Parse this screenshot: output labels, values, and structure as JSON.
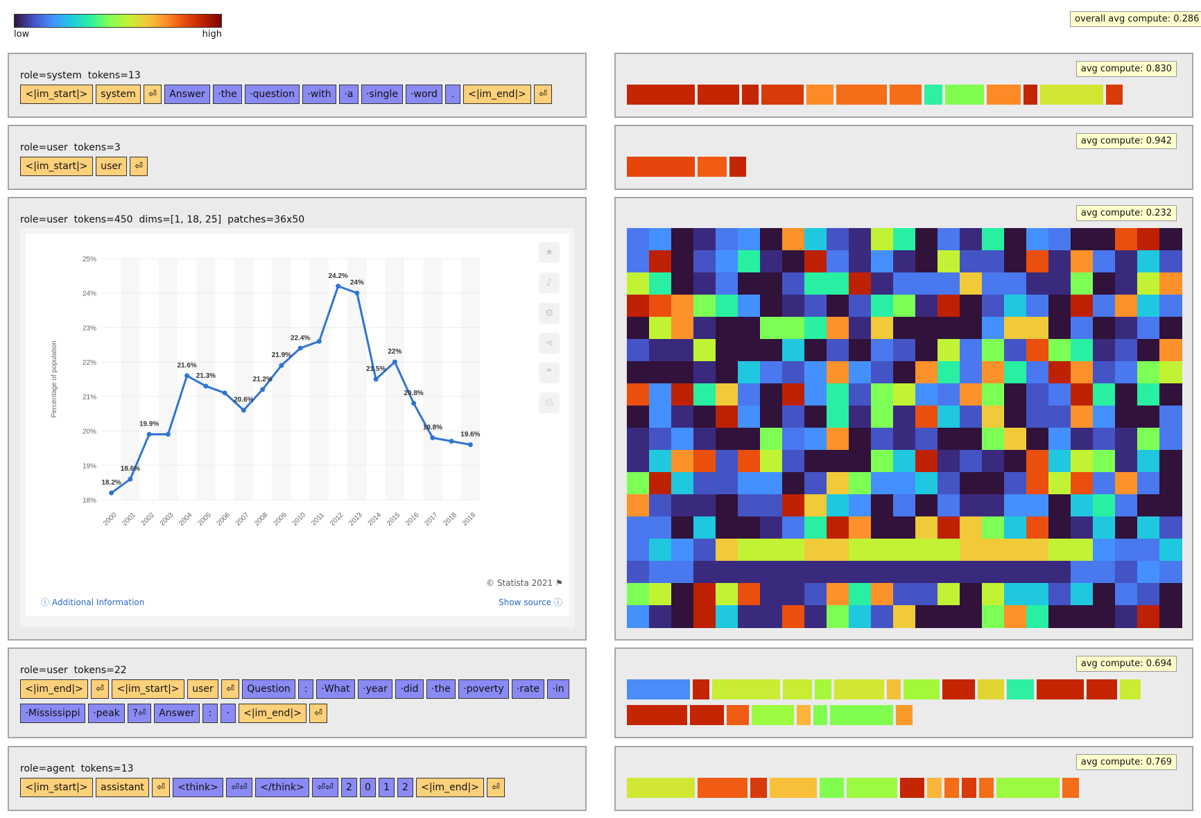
{
  "legend": {
    "low": "low",
    "high": "high"
  },
  "overall_avg": "overall avg compute: 0.286",
  "colors": {
    "special_token": "#fdd07a",
    "text_token": "#8a8af5",
    "panel_bg": "#ebebeb",
    "badge_bg": "#ffffcc"
  },
  "rows": [
    {
      "header": "role=system  tokens=13",
      "tokens": [
        {
          "t": "<|im_start|>",
          "k": "sp"
        },
        {
          "t": "system",
          "k": "sp"
        },
        {
          "t": "⏎",
          "k": "sp"
        },
        {
          "t": "Answer",
          "k": "tx"
        },
        {
          "t": "·the",
          "k": "tx"
        },
        {
          "t": "·question",
          "k": "tx"
        },
        {
          "t": "·with",
          "k": "tx"
        },
        {
          "t": "·a",
          "k": "tx"
        },
        {
          "t": "·single",
          "k": "tx"
        },
        {
          "t": "·word",
          "k": "tx"
        },
        {
          "t": ".",
          "k": "tx"
        },
        {
          "t": "<|im_end|>",
          "k": "sp"
        },
        {
          "t": "⏎",
          "k": "sp"
        }
      ],
      "avg": "avg compute: 0.830",
      "compute": [
        "#c42503",
        "#c42503",
        "#c42503",
        "#d83a0a",
        "#fc8a26",
        "#f46d18",
        "#f46d18",
        "#2fefa0",
        "#81fd50",
        "#fc8a26",
        "#c42503",
        "#d2e634",
        "#d83a0a"
      ]
    },
    {
      "header": "role=user  tokens=3",
      "tokens": [
        {
          "t": "<|im_start|>",
          "k": "sp"
        },
        {
          "t": "user",
          "k": "sp"
        },
        {
          "t": "⏎",
          "k": "sp"
        }
      ],
      "avg": "avg compute: 0.942",
      "compute": [
        "#e4460c",
        "#f05c14",
        "#c42503"
      ]
    },
    {
      "header": "role=user  tokens=450  dims=[1, 18, 25]  patches=36x50",
      "avg": "avg compute: 0.232"
    },
    {
      "header": "role=user  tokens=22",
      "tokens": [
        {
          "t": "<|im_end|>",
          "k": "sp"
        },
        {
          "t": "⏎",
          "k": "sp"
        },
        {
          "t": "<|im_start|>",
          "k": "sp"
        },
        {
          "t": "user",
          "k": "sp"
        },
        {
          "t": "⏎",
          "k": "sp"
        },
        {
          "t": "Question",
          "k": "tx"
        },
        {
          "t": ":",
          "k": "tx"
        },
        {
          "t": "·What",
          "k": "tx"
        },
        {
          "t": "·year",
          "k": "tx"
        },
        {
          "t": "·did",
          "k": "tx"
        },
        {
          "t": "·the",
          "k": "tx"
        },
        {
          "t": "·poverty",
          "k": "tx"
        },
        {
          "t": "·rate",
          "k": "tx"
        },
        {
          "t": "·in",
          "k": "tx"
        },
        {
          "t": "·Mississippi",
          "k": "tx"
        },
        {
          "t": "·peak",
          "k": "tx"
        },
        {
          "t": "?⏎",
          "k": "tx"
        },
        {
          "t": "Answer",
          "k": "tx"
        },
        {
          "t": ":",
          "k": "tx"
        },
        {
          "t": "·",
          "k": "tx"
        },
        {
          "t": "<|im_end|>",
          "k": "sp"
        },
        {
          "t": "⏎",
          "k": "sp"
        }
      ],
      "avg": "avg compute: 0.694",
      "compute": [
        "#4a8cf8",
        "#c42503",
        "#c9ec34",
        "#c9ec34",
        "#a3f83c",
        "#d2e634",
        "#f2c13a",
        "#a3f83c",
        "#c42503",
        "#e0d532",
        "#2fefa0",
        "#c42503",
        "#c42503",
        "#c9ec34",
        "#c42503",
        "#c42503",
        "#f05c14",
        "#9cfa40",
        "#fab53a",
        "#81fd50",
        "#81fd50",
        "#fc9a2c"
      ]
    },
    {
      "header": "role=agent  tokens=13",
      "tokens": [
        {
          "t": "<|im_start|>",
          "k": "sp"
        },
        {
          "t": "assistant",
          "k": "sp"
        },
        {
          "t": "⏎",
          "k": "sp"
        },
        {
          "t": "<think>",
          "k": "tx"
        },
        {
          "t": "⏎⏎",
          "k": "tx"
        },
        {
          "t": "</think>",
          "k": "tx"
        },
        {
          "t": "⏎⏎",
          "k": "tx"
        },
        {
          "t": "2",
          "k": "tx"
        },
        {
          "t": "0",
          "k": "tx"
        },
        {
          "t": "1",
          "k": "tx"
        },
        {
          "t": "2",
          "k": "tx"
        },
        {
          "t": "<|im_end|>",
          "k": "sp"
        },
        {
          "t": "⏎",
          "k": "sp"
        }
      ],
      "avg": "avg compute: 0.769",
      "compute": [
        "#d2e634",
        "#f05c14",
        "#d83a0a",
        "#f8c03a",
        "#81fd50",
        "#9cfa40",
        "#c42503",
        "#fab53a",
        "#f46d18",
        "#d83a0a",
        "#f46d18",
        "#9cfa40",
        "#f46d18"
      ]
    }
  ],
  "chart": {
    "yaxis_label": "Percentage of population",
    "copyright": "© Statista 2021",
    "additional_info": "Additional Information",
    "show_source": "Show source",
    "side_icons": [
      "star-icon",
      "bell-icon",
      "gear-icon",
      "share-icon",
      "quote-icon",
      "print-icon"
    ]
  },
  "chart_data": {
    "type": "line",
    "x": [
      "2000",
      "2001",
      "2002",
      "2003",
      "2004",
      "2005",
      "2006",
      "2007",
      "2008",
      "2009",
      "2010",
      "2011",
      "2012",
      "2013",
      "2014",
      "2015",
      "2016",
      "2017",
      "2018",
      "2019"
    ],
    "values": [
      18.2,
      18.6,
      19.9,
      19.9,
      21.6,
      21.3,
      21.1,
      20.6,
      21.2,
      21.9,
      22.4,
      22.6,
      24.2,
      24.0,
      21.5,
      22.0,
      20.8,
      19.8,
      19.7,
      19.6
    ],
    "data_labels": [
      "18.2%",
      "18.6%",
      "19.9%",
      "",
      "21.6%",
      "21.3%",
      "",
      "20.6%",
      "21.2%",
      "21.9%",
      "22.4%",
      "",
      "24.2%",
      "24%",
      "21.5%",
      "22%",
      "20.8%",
      "19.8%",
      "",
      "19.6%"
    ],
    "yticks": [
      "18%",
      "19%",
      "20%",
      "21%",
      "22%",
      "23%",
      "24%",
      "25%"
    ],
    "ylim": [
      18,
      25
    ],
    "ylabel": "Percentage of population",
    "grid": true,
    "color": "#2f74d0"
  }
}
